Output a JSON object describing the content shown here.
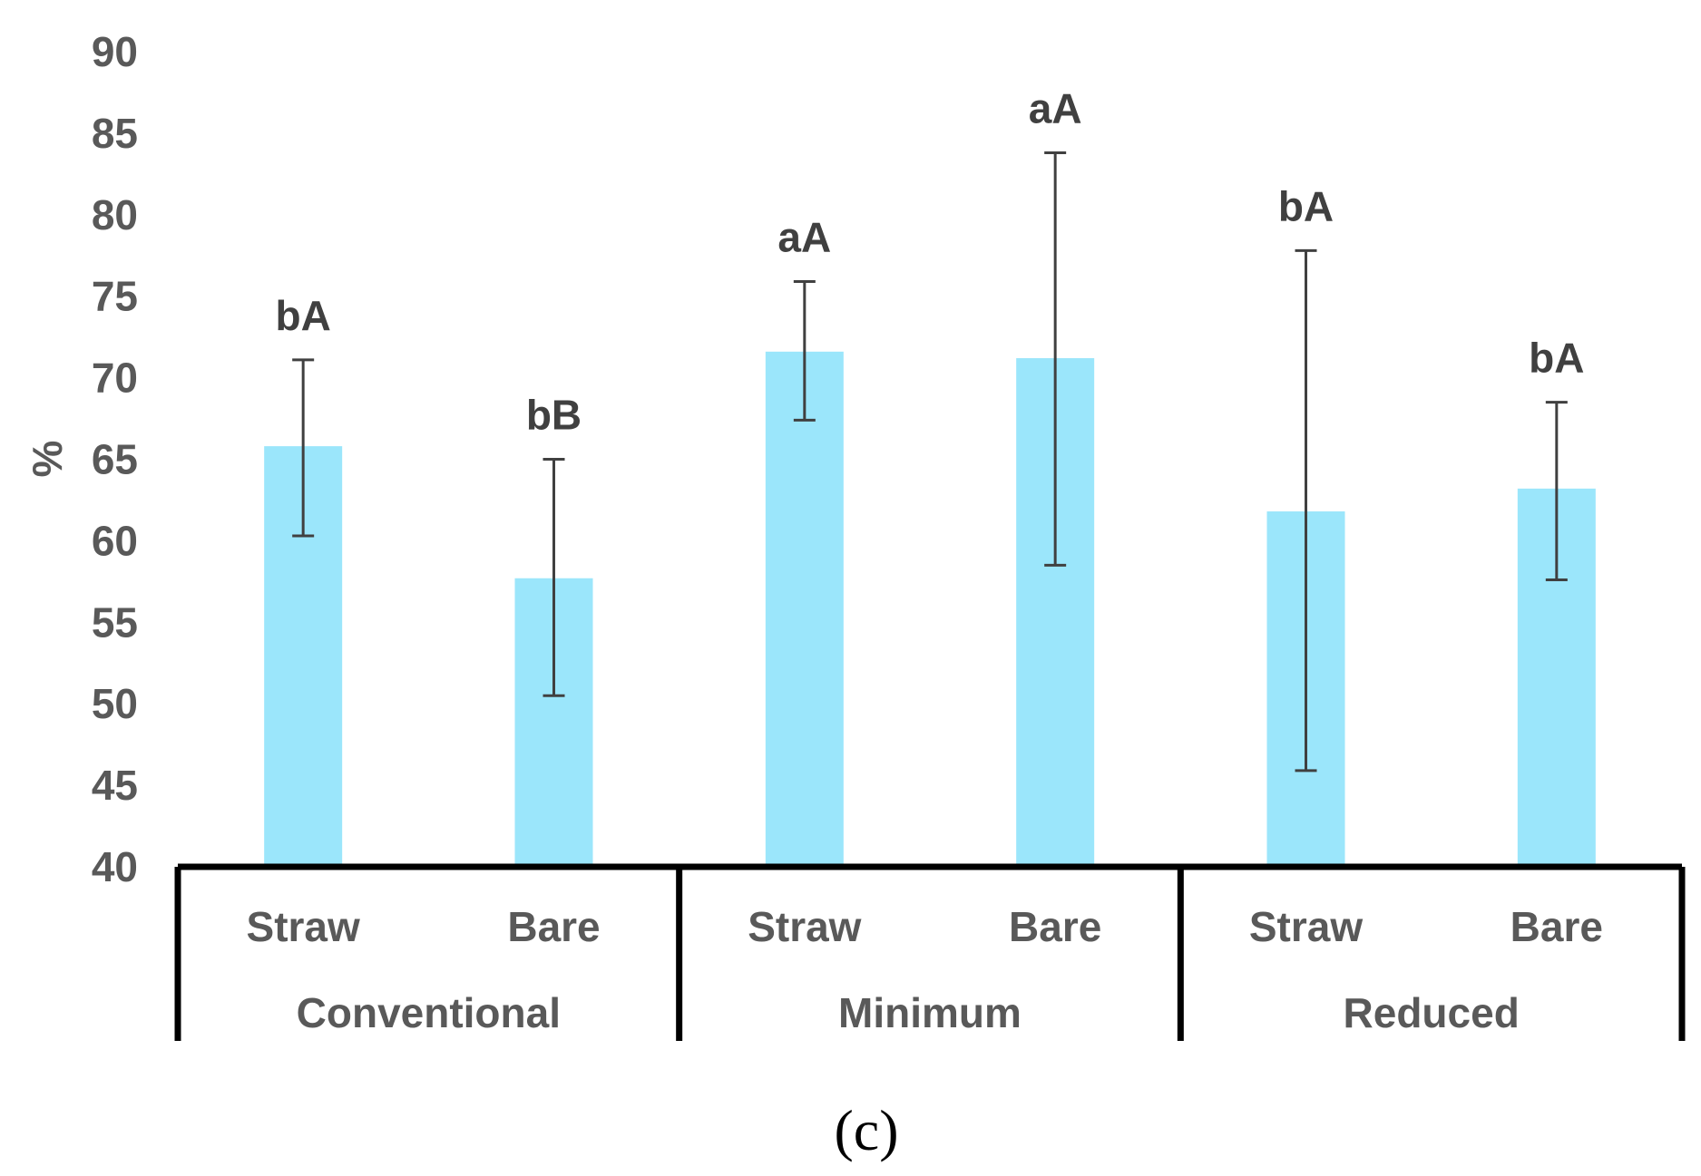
{
  "chart_data": {
    "type": "bar",
    "ylabel": "%",
    "ylim": [
      40,
      90
    ],
    "yticks": [
      40,
      45,
      50,
      55,
      60,
      65,
      70,
      75,
      80,
      85,
      90
    ],
    "groups": [
      "Conventional",
      "Minimum",
      "Reduced"
    ],
    "bars": [
      {
        "group": "Conventional",
        "category": "Straw",
        "value": 65.8,
        "err_low": 60.3,
        "err_high": 71.1,
        "label": "bA"
      },
      {
        "group": "Conventional",
        "category": "Bare",
        "value": 57.7,
        "err_low": 50.5,
        "err_high": 65.0,
        "label": "bB"
      },
      {
        "group": "Minimum",
        "category": "Straw",
        "value": 71.6,
        "err_low": 67.4,
        "err_high": 75.9,
        "label": "aA"
      },
      {
        "group": "Minimum",
        "category": "Bare",
        "value": 71.2,
        "err_low": 58.5,
        "err_high": 83.8,
        "label": "aA"
      },
      {
        "group": "Reduced",
        "category": "Straw",
        "value": 61.8,
        "err_low": 45.9,
        "err_high": 77.8,
        "label": "bA"
      },
      {
        "group": "Reduced",
        "category": "Bare",
        "value": 63.2,
        "err_low": 57.6,
        "err_high": 68.5,
        "label": "bA"
      }
    ],
    "color": "#9be6fb",
    "panel_label": "(c)"
  }
}
